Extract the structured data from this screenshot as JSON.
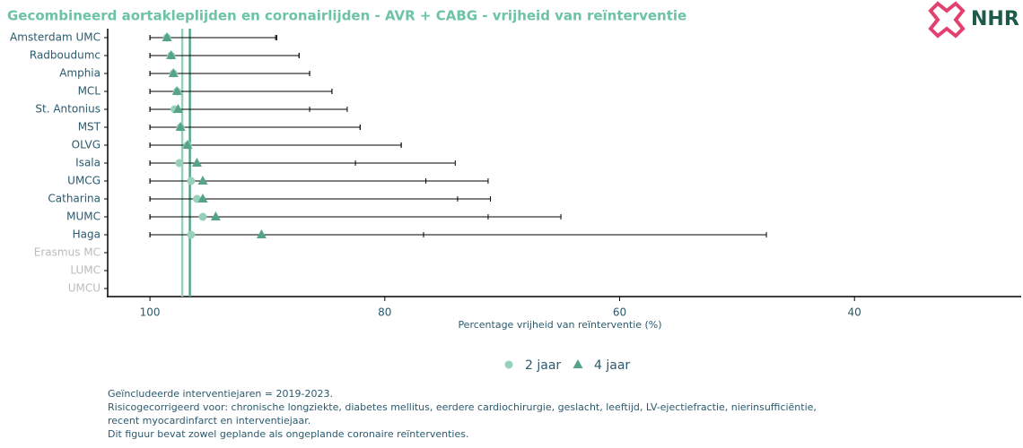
{
  "chart_data": {
    "type": "forest",
    "title": "Gecombineerd aortakleplijden en coronairlijden - AVR + CABG - vrijheid van reïnterventie",
    "logo": "NHR",
    "x_label": "Percentage vrijheid van reïnterventie (%)",
    "categories": [
      "Amsterdam UMC",
      "Radboudumc",
      "Amphia",
      "MCL",
      "St. Antonius",
      "MST",
      "OLVG",
      "Isala",
      "UMCG",
      "Catharina",
      "MUMC",
      "Haga",
      "Erasmus MC",
      "LUMC",
      "UMCU"
    ],
    "series": [
      {
        "name": "2 jaar",
        "color": "#98d1ba",
        "marker": "circle",
        "overall": 97.25,
        "values": [
          98.55,
          98.2,
          98.0,
          97.7,
          97.9,
          97.4,
          96.8,
          97.5,
          96.5,
          96.0,
          95.5,
          96.5,
          null,
          null,
          null
        ],
        "ci_low": [
          89.3,
          87.3,
          86.4,
          84.5,
          86.4,
          82.1,
          78.6,
          82.5,
          76.5,
          73.8,
          71.2,
          76.7,
          null,
          null,
          null
        ],
        "ci_high": [
          100,
          100,
          100,
          100,
          100,
          100,
          100,
          100,
          100,
          100,
          100,
          100,
          null,
          null,
          null
        ]
      },
      {
        "name": "4 jaar",
        "color": "#56a488",
        "marker": "triangle",
        "overall": 96.6,
        "values": [
          98.55,
          98.2,
          98.0,
          97.7,
          97.6,
          97.4,
          96.8,
          96.0,
          95.5,
          95.5,
          94.4,
          90.5,
          null,
          null,
          null
        ],
        "ci_low": [
          89.2,
          87.3,
          86.4,
          84.5,
          83.2,
          82.1,
          78.6,
          74.0,
          71.2,
          71.0,
          65.0,
          47.5,
          null,
          null,
          null
        ],
        "ci_high": [
          100,
          100,
          100,
          100,
          100,
          100,
          100,
          100,
          100,
          100,
          100,
          100,
          null,
          null,
          null
        ]
      }
    ],
    "xlim": [
      103.6,
      25.8
    ],
    "xticks": [
      100,
      80,
      60,
      40
    ],
    "notes": [
      "Geïncludeerde interventiejaren = 2019-2023.",
      "Risicogecorrigeerd voor: chronische longziekte, diabetes mellitus, eerdere cardiochirurgie, geslacht, leeftijd, LV-ejectiefractie, nierinsufficiëntie,",
      "recent myocardinfarct en interventiejaar.",
      "Dit figuur bevat zowel geplande als ongeplande coronaire reïnterventies."
    ]
  }
}
